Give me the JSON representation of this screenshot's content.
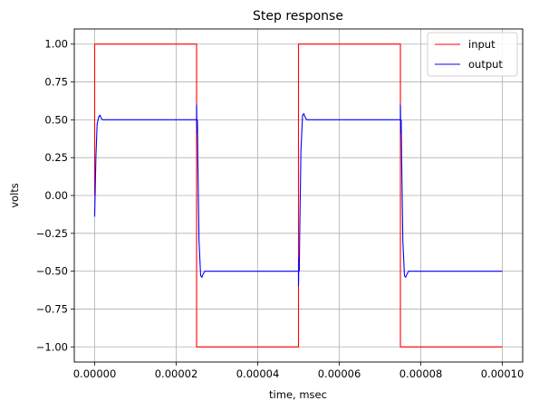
{
  "chart_data": {
    "type": "line",
    "title": "Step response",
    "xlabel": "time, msec",
    "ylabel": "volts",
    "xlim": [
      -5e-06,
      0.000105
    ],
    "ylim": [
      -1.1,
      1.1
    ],
    "x_ticks": [
      0,
      2e-05,
      4e-05,
      6e-05,
      8e-05,
      0.0001
    ],
    "x_tick_labels": [
      "0.00000",
      "0.00002",
      "0.00004",
      "0.00006",
      "0.00008",
      "0.00010"
    ],
    "y_ticks": [
      1.0,
      0.75,
      0.5,
      0.25,
      0.0,
      -0.25,
      -0.5,
      -0.75,
      -1.0
    ],
    "y_tick_labels": [
      "1.00",
      "0.75",
      "0.50",
      "0.25",
      "0.00",
      "−0.25",
      "−0.50",
      "−0.75",
      "−1.00"
    ],
    "grid": true,
    "legend_position": "top-right",
    "series": [
      {
        "name": "input",
        "color": "#ff0000",
        "x": [
          0,
          0,
          2.5e-05,
          2.5e-05,
          5e-05,
          5e-05,
          7.5e-05,
          7.5e-05,
          0.0001
        ],
        "y": [
          0,
          1,
          1,
          -1,
          -1,
          1,
          1,
          -1,
          -1
        ]
      },
      {
        "name": "output",
        "color": "#0000ff",
        "x": [
          0,
          3e-07,
          6e-07,
          1e-06,
          1.3e-06,
          1.6e-06,
          2e-06,
          2.5e-06,
          3e-06,
          2.5e-05,
          2.5e-05,
          2.51e-05,
          2.52e-05,
          2.53e-05,
          2.56e-05,
          2.6e-05,
          2.63e-05,
          2.66e-05,
          2.7e-05,
          2.75e-05,
          2.8e-05,
          5e-05,
          5e-05,
          5.01e-05,
          5.02e-05,
          5.03e-05,
          5.06e-05,
          5.1e-05,
          5.13e-05,
          5.16e-05,
          5.2e-05,
          5.25e-05,
          5.3e-05,
          7.5e-05,
          7.5e-05,
          7.51e-05,
          7.52e-05,
          7.53e-05,
          7.56e-05,
          7.6e-05,
          7.63e-05,
          7.66e-05,
          7.7e-05,
          7.75e-05,
          7.8e-05,
          0.0001
        ],
        "y": [
          -0.14,
          0.25,
          0.47,
          0.52,
          0.53,
          0.51,
          0.5,
          0.5,
          0.5,
          0.5,
          0.6,
          0.41,
          0.5,
          0.25,
          -0.3,
          -0.53,
          -0.54,
          -0.52,
          -0.5,
          -0.5,
          -0.5,
          -0.5,
          -0.6,
          -0.41,
          -0.5,
          -0.25,
          0.3,
          0.53,
          0.54,
          0.52,
          0.5,
          0.5,
          0.5,
          0.5,
          0.6,
          0.41,
          0.5,
          0.25,
          -0.3,
          -0.53,
          -0.54,
          -0.52,
          -0.5,
          -0.5,
          -0.5,
          -0.5
        ]
      }
    ]
  }
}
